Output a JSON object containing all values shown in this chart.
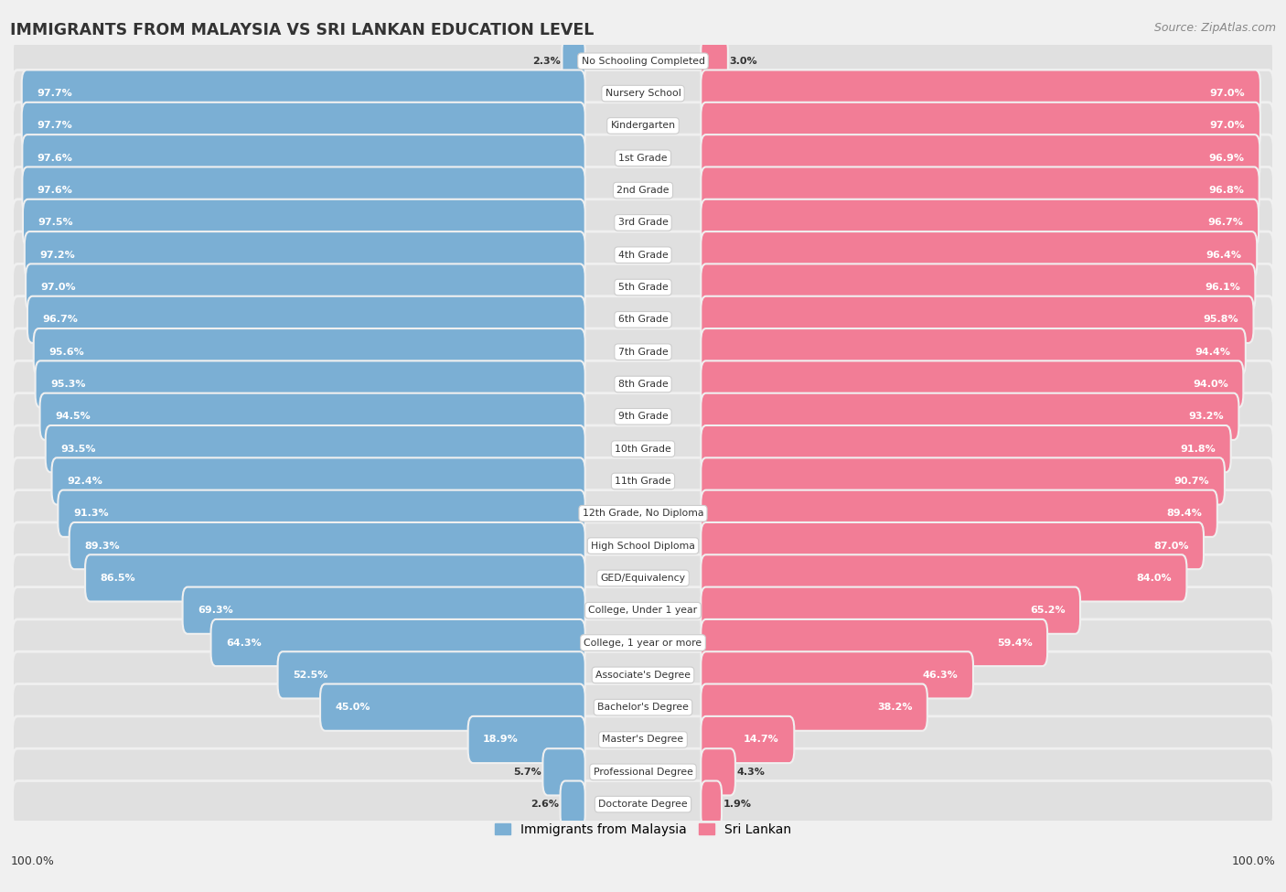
{
  "title": "IMMIGRANTS FROM MALAYSIA VS SRI LANKAN EDUCATION LEVEL",
  "source": "Source: ZipAtlas.com",
  "categories": [
    "No Schooling Completed",
    "Nursery School",
    "Kindergarten",
    "1st Grade",
    "2nd Grade",
    "3rd Grade",
    "4th Grade",
    "5th Grade",
    "6th Grade",
    "7th Grade",
    "8th Grade",
    "9th Grade",
    "10th Grade",
    "11th Grade",
    "12th Grade, No Diploma",
    "High School Diploma",
    "GED/Equivalency",
    "College, Under 1 year",
    "College, 1 year or more",
    "Associate's Degree",
    "Bachelor's Degree",
    "Master's Degree",
    "Professional Degree",
    "Doctorate Degree"
  ],
  "malaysia_values": [
    2.3,
    97.7,
    97.7,
    97.6,
    97.6,
    97.5,
    97.2,
    97.0,
    96.7,
    95.6,
    95.3,
    94.5,
    93.5,
    92.4,
    91.3,
    89.3,
    86.5,
    69.3,
    64.3,
    52.5,
    45.0,
    18.9,
    5.7,
    2.6
  ],
  "srilanka_values": [
    3.0,
    97.0,
    97.0,
    96.9,
    96.8,
    96.7,
    96.4,
    96.1,
    95.8,
    94.4,
    94.0,
    93.2,
    91.8,
    90.7,
    89.4,
    87.0,
    84.0,
    65.2,
    59.4,
    46.3,
    38.2,
    14.7,
    4.3,
    1.9
  ],
  "malaysia_color": "#7bafd4",
  "srilanka_color": "#f27d96",
  "background_color": "#f0f0f0",
  "row_bg_color": "#e0e0e0",
  "text_color": "#333333",
  "white": "#ffffff"
}
